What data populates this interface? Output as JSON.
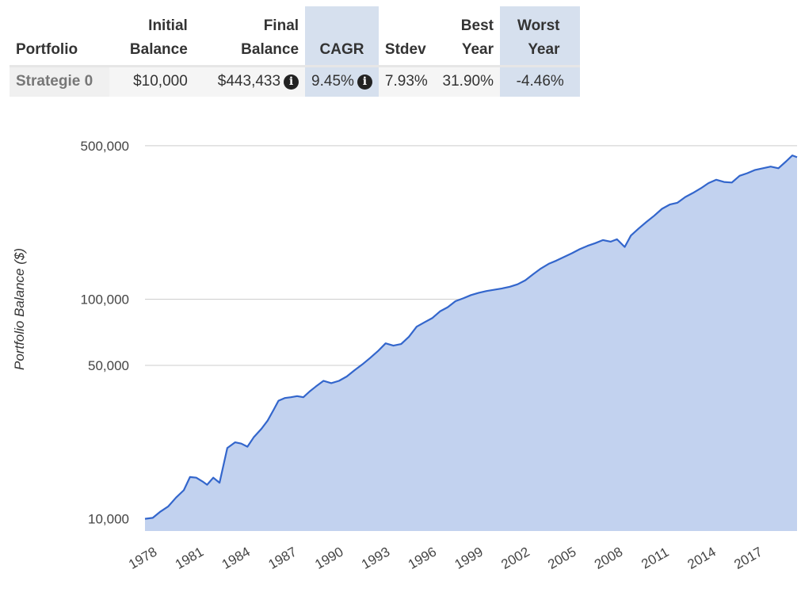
{
  "table": {
    "headers": {
      "portfolio": "Portfolio",
      "initial_line1": "Initial",
      "initial_line2": "Balance",
      "final_line1": "Final",
      "final_line2": "Balance",
      "cagr": "CAGR",
      "stdev": "Stdev",
      "best_line1": "Best",
      "best_line2": "Year",
      "worst_line1": "Worst",
      "worst_line2": "Year"
    },
    "rows": [
      {
        "portfolio": "Strategie 0",
        "initial": "$10,000",
        "final": "$443,433",
        "cagr": "9.45%",
        "stdev": "7.93%",
        "best": "31.90%",
        "worst": "-4.46%"
      }
    ],
    "info_icon": "info-circle-icon",
    "highlight_color": "#d6e0ee"
  },
  "chart_data": {
    "type": "area",
    "ylabel": "Portfolio Balance ($)",
    "xlabel": "",
    "yscale": "log",
    "ylim": [
      8800,
      590000
    ],
    "xlim": [
      1978.0,
      2020.0
    ],
    "yticks": [
      10000,
      50000,
      100000,
      500000
    ],
    "ytick_labels": [
      "10,000",
      "50,000",
      "100,000",
      "500,000"
    ],
    "xtick_labels": [
      "1978",
      "1981",
      "1984",
      "1987",
      "1990",
      "1993",
      "1996",
      "1999",
      "2002",
      "2005",
      "2008",
      "2011",
      "2014",
      "2017"
    ],
    "grid": true,
    "line_color": "#3366cc",
    "fill_color": "#c2d2ef",
    "series": [
      {
        "x": [
          1978.0,
          1978.5,
          1979.0,
          1979.5,
          1980.0,
          1980.5,
          1980.9,
          1981.3,
          1981.7,
          1982.0,
          1982.4,
          1982.8,
          1983.3,
          1983.8,
          1984.2,
          1984.6,
          1985.0,
          1985.5,
          1985.9,
          1986.3,
          1986.6,
          1987.0,
          1987.4,
          1987.8,
          1988.2,
          1988.6,
          1989.0,
          1989.5,
          1990.0,
          1990.5,
          1991.0,
          1991.5,
          1992.0,
          1992.5,
          1993.0,
          1993.5,
          1994.0,
          1994.5,
          1995.0,
          1995.5,
          1996.0,
          1996.5,
          1997.0,
          1997.5,
          1998.0,
          1998.5,
          1999.0,
          1999.5,
          2000.0,
          2000.5,
          2001.0,
          2001.5,
          2002.0,
          2002.5,
          2003.0,
          2003.5,
          2004.0,
          2004.5,
          2005.0,
          2005.5,
          2006.0,
          2006.5,
          2007.0,
          2007.5,
          2008.0,
          2008.4,
          2008.9,
          2009.3,
          2009.8,
          2010.3,
          2010.8,
          2011.3,
          2011.8,
          2012.3,
          2012.8,
          2013.3,
          2013.8,
          2014.3,
          2014.8,
          2015.3,
          2015.8,
          2016.3,
          2016.8,
          2017.3,
          2017.8,
          2018.3,
          2018.8,
          2019.3,
          2019.7,
          2020.0
        ],
        "y": [
          10000,
          10100,
          10800,
          11400,
          12500,
          13500,
          15500,
          15400,
          14800,
          14300,
          15400,
          14600,
          21000,
          22300,
          22000,
          21300,
          23500,
          25700,
          28000,
          31500,
          34500,
          35500,
          35800,
          36200,
          35800,
          38000,
          40000,
          42500,
          41500,
          42500,
          44500,
          47500,
          50500,
          54000,
          58000,
          63000,
          61500,
          62500,
          67500,
          75000,
          78500,
          82000,
          88000,
          92000,
          98000,
          101000,
          104500,
          107000,
          109000,
          110500,
          112000,
          114000,
          117000,
          122000,
          130000,
          138000,
          145000,
          150000,
          156000,
          162000,
          169000,
          175000,
          180000,
          186000,
          183000,
          187500,
          173000,
          195000,
          210000,
          225000,
          240000,
          258000,
          270000,
          275000,
          292000,
          305000,
          320000,
          338000,
          350000,
          342000,
          340000,
          365000,
          375000,
          388000,
          395000,
          402000,
          395000,
          425000,
          452000,
          443433
        ]
      }
    ]
  }
}
